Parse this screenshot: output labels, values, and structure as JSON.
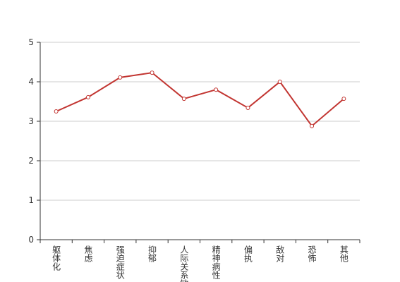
{
  "chart_data": {
    "type": "line",
    "categories": [
      "躯体化",
      "焦虑",
      "强迫症状",
      "抑郁",
      "人际关系敏感",
      "精神病性",
      "偏执",
      "敌对",
      "恐怖",
      "其他"
    ],
    "series": [
      {
        "color": "#c23531",
        "values": [
          3.25,
          3.61,
          4.11,
          4.23,
          3.57,
          3.8,
          3.34,
          4.0,
          2.88,
          3.57
        ]
      }
    ],
    "ylim": [
      0,
      5
    ],
    "yticks": [
      0,
      1,
      2,
      3,
      4,
      5
    ],
    "grid": true
  }
}
